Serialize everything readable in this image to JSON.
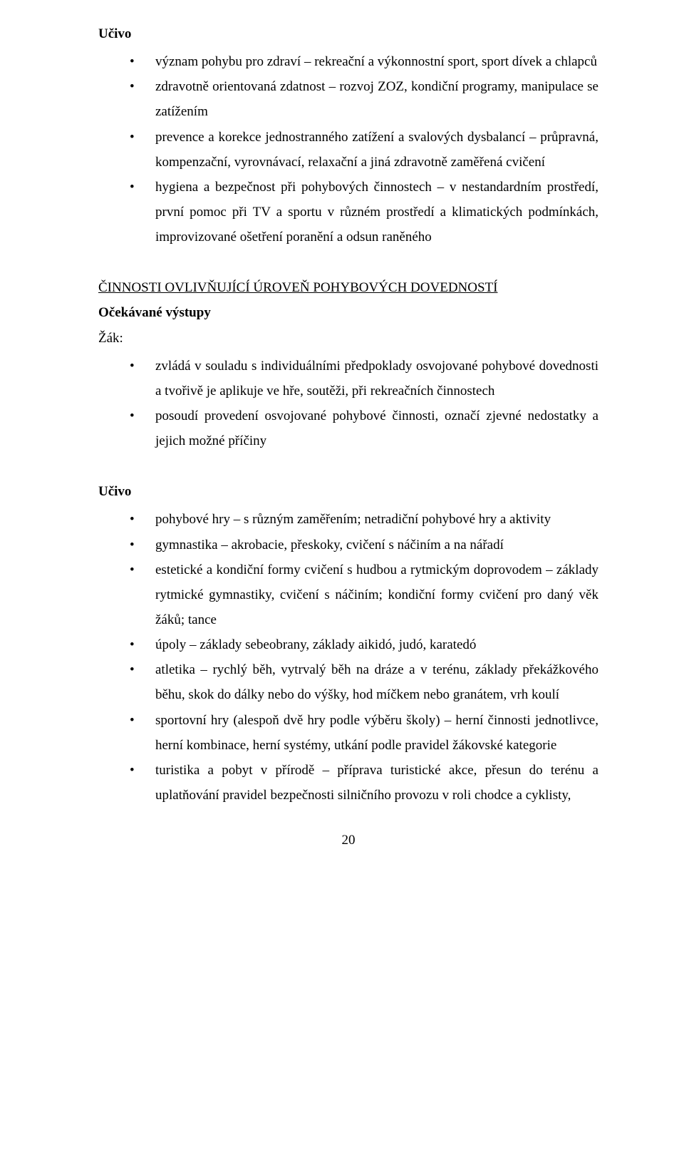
{
  "section1": {
    "heading": "Učivo",
    "items": [
      "význam pohybu pro zdraví – rekreační a výkonnostní sport, sport dívek a chlapců",
      "zdravotně orientovaná zdatnost – rozvoj ZOZ, kondiční programy, manipulace se zatížením",
      "prevence a korekce jednostranného zatížení a svalových dysbalancí – průpravná, kompenzační, vyrovnávací, relaxační a jiná zdravotně zaměřená cvičení",
      "hygiena a bezpečnost při pohybových činnostech – v nestandardním prostředí, první pomoc při TV a sportu v různém prostředí a klimatických podmínkách, improvizované ošetření poranění a odsun raněného"
    ]
  },
  "section2": {
    "title": "ČINNOSTI OVLIVŇUJÍCÍ ÚROVEŇ POHYBOVÝCH DOVEDNOSTÍ",
    "subheading1": "Očekávané výstupy",
    "subheading2": "Žák:",
    "items": [
      "zvládá v souladu s individuálními předpoklady osvojované pohybové dovednosti a tvořivě je aplikuje ve hře, soutěži, při rekreačních činnostech",
      "posoudí provedení osvojované pohybové činnosti, označí zjevné nedostatky a jejich možné příčiny"
    ]
  },
  "section3": {
    "heading": "Učivo",
    "items": [
      "pohybové hry – s různým zaměřením; netradiční pohybové hry a aktivity",
      "gymnastika – akrobacie, přeskoky, cvičení s náčiním a na nářadí",
      "estetické a kondiční formy cvičení s hudbou a rytmickým doprovodem – základy rytmické gymnastiky, cvičení s náčiním; kondiční formy cvičení pro daný věk žáků; tance",
      "úpoly – základy sebeobrany, základy aikidó, judó, karatedó",
      "atletika – rychlý běh, vytrvalý běh na dráze a v terénu, základy překážkového běhu, skok do dálky nebo do výšky, hod míčkem nebo granátem, vrh koulí",
      "sportovní hry (alespoň dvě hry podle výběru školy) – herní činnosti jednotlivce, herní kombinace, herní systémy, utkání podle pravidel žákovské kategorie",
      "turistika a pobyt v přírodě – příprava turistické akce, přesun do terénu a uplatňování pravidel bezpečnosti silničního provozu v roli chodce a cyklisty,"
    ]
  },
  "pageNumber": "20"
}
